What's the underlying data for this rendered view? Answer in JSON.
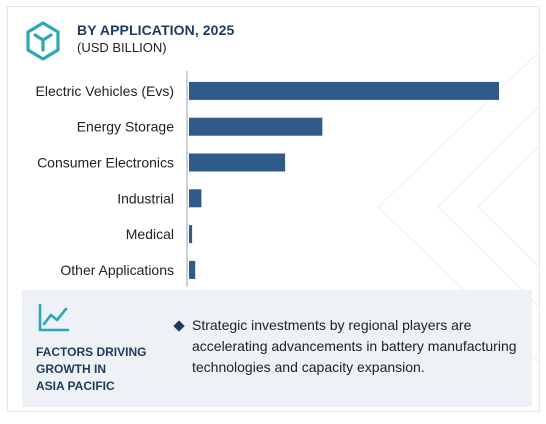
{
  "header": {
    "title": "BY APPLICATION, 2025",
    "subtitle": "(USD BILLION)"
  },
  "chart_data": {
    "type": "bar",
    "orientation": "horizontal",
    "categories": [
      "Electric Vehicles (Evs)",
      "Energy Storage",
      "Consumer Electronics",
      "Industrial",
      "Medical",
      "Other Applications"
    ],
    "values": [
      100,
      43,
      31,
      4,
      1,
      2
    ],
    "title": "BY APPLICATION, 2025",
    "xlabel": "",
    "ylabel": "",
    "grid": false,
    "bar_color": "#2f5a8a",
    "axis_color": "#9aa3ad"
  },
  "footer": {
    "heading": "FACTORS DRIVING\nGROWTH IN\nASIA PACIFIC",
    "bullet": "Strategic investments by regional players are accelerating advancements in battery manufacturing technologies and capacity expansion."
  },
  "icons": {
    "logo": "cube-logo-icon",
    "trend": "trend-line-icon"
  },
  "colors": {
    "accent": "#2aa7b8",
    "navy": "#1f3a5f",
    "panel": "#eef1f5"
  }
}
